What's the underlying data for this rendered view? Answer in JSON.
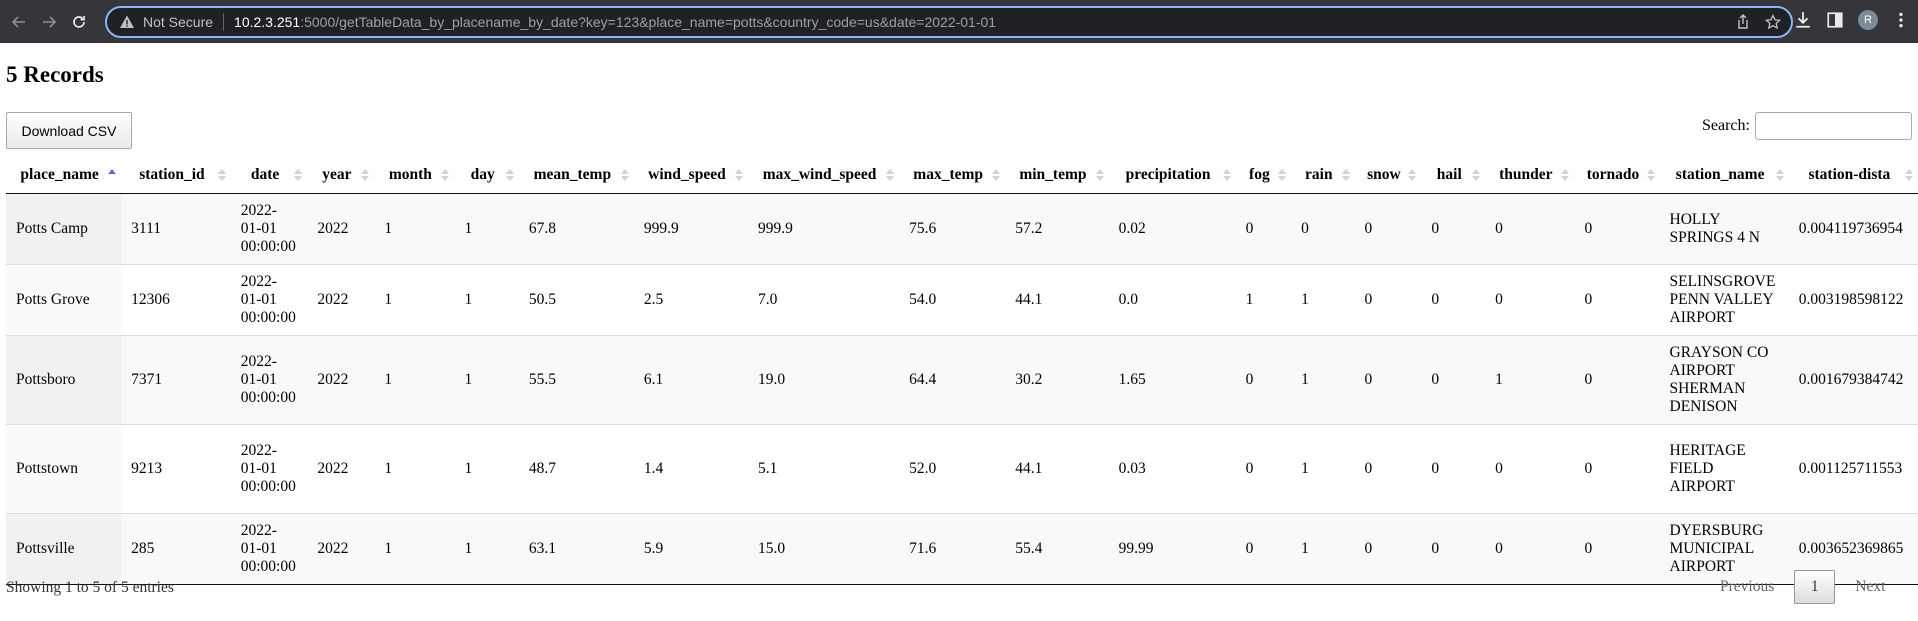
{
  "browser": {
    "security_label": "Not Secure",
    "url_host": "10.2.3.251",
    "url_rest": ":5000/getTableData_by_placename_by_date?key=123&place_name=potts&country_code=us&date=2022-01-01",
    "profile_initial": "R"
  },
  "page": {
    "title": "5 Records",
    "download_label": "Download CSV",
    "search_label": "Search:",
    "search_value": ""
  },
  "table": {
    "headers": [
      "place_name",
      "station_id",
      "date",
      "year",
      "month",
      "day",
      "mean_temp",
      "wind_speed",
      "max_wind_speed",
      "max_temp",
      "min_temp",
      "precipitation",
      "fog",
      "rain",
      "snow",
      "hail",
      "thunder",
      "tornado",
      "station_name",
      "station-dista"
    ],
    "sorted_column": "place_name",
    "rows": [
      [
        "Potts Camp",
        "3111",
        "2022-01-01 00:00:00",
        "2022",
        "1",
        "1",
        "67.8",
        "999.9",
        "999.9",
        "75.6",
        "57.2",
        "0.02",
        "0",
        "0",
        "0",
        "0",
        "0",
        "0",
        "HOLLY SPRINGS 4 N",
        "0.004119736954"
      ],
      [
        "Potts Grove",
        "12306",
        "2022-01-01 00:00:00",
        "2022",
        "1",
        "1",
        "50.5",
        "2.5",
        "7.0",
        "54.0",
        "44.1",
        "0.0",
        "1",
        "1",
        "0",
        "0",
        "0",
        "0",
        "SELINSGROVE PENN VALLEY AIRPORT",
        "0.003198598122"
      ],
      [
        "Pottsboro",
        "7371",
        "2022-01-01 00:00:00",
        "2022",
        "1",
        "1",
        "55.5",
        "6.1",
        "19.0",
        "64.4",
        "30.2",
        "1.65",
        "0",
        "1",
        "0",
        "0",
        "1",
        "0",
        "GRAYSON CO AIRPORT SHERMAN DENISON",
        "0.001679384742"
      ],
      [
        "Pottstown",
        "9213",
        "2022-01-01 00:00:00",
        "2022",
        "1",
        "1",
        "48.7",
        "1.4",
        "5.1",
        "52.0",
        "44.1",
        "0.03",
        "0",
        "1",
        "0",
        "0",
        "0",
        "0",
        "HERITAGE FIELD AIRPORT",
        "0.001125711553"
      ],
      [
        "Pottsville",
        "285",
        "2022-01-01 00:00:00",
        "2022",
        "1",
        "1",
        "63.1",
        "5.9",
        "15.0",
        "71.6",
        "55.4",
        "99.99",
        "0",
        "1",
        "0",
        "0",
        "0",
        "0",
        "DYERSBURG MUNICIPAL AIRPORT",
        "0.003652369865"
      ]
    ]
  },
  "footer": {
    "info": "Showing 1 to 5 of 5 entries",
    "previous": "Previous",
    "current_page": "1",
    "next": "Next"
  }
}
